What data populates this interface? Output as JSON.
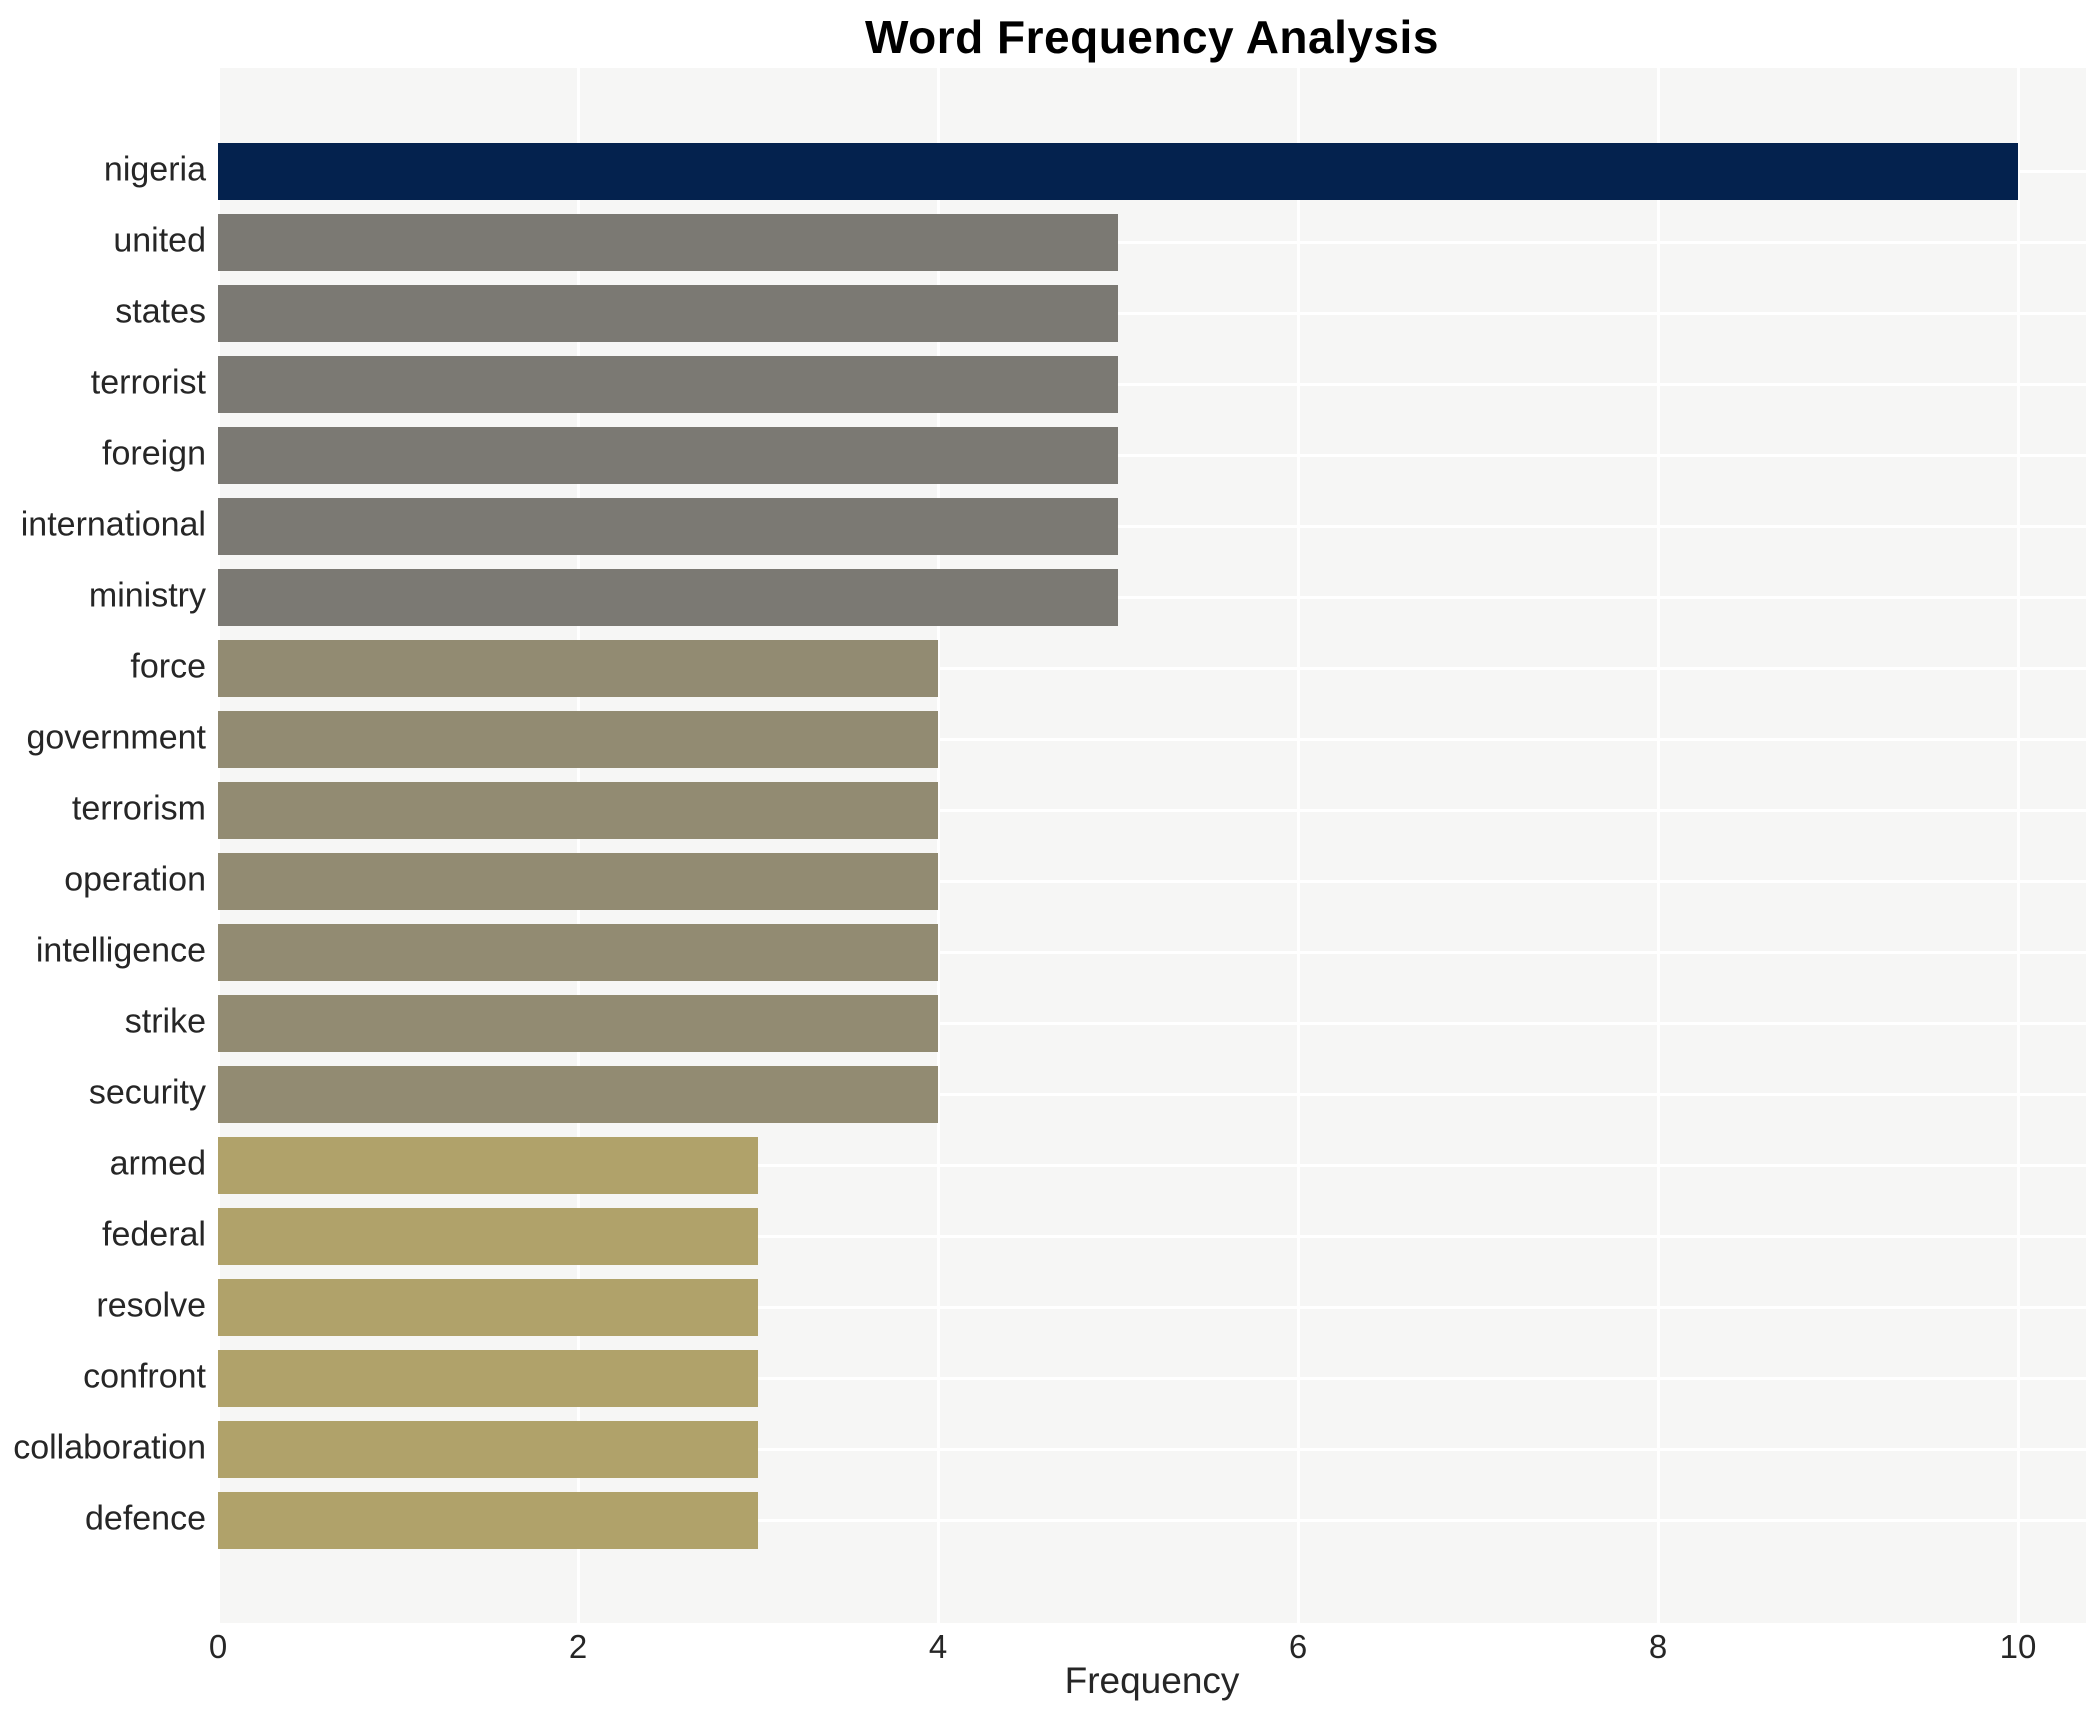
{
  "title": "Word Frequency Analysis",
  "chart_data": {
    "type": "bar",
    "orientation": "horizontal",
    "title": "Word Frequency Analysis",
    "xlabel": "Frequency",
    "ylabel": "",
    "categories": [
      "nigeria",
      "united",
      "states",
      "terrorist",
      "foreign",
      "international",
      "ministry",
      "force",
      "government",
      "terrorism",
      "operation",
      "intelligence",
      "strike",
      "security",
      "armed",
      "federal",
      "resolve",
      "confront",
      "collaboration",
      "defence"
    ],
    "values": [
      10,
      5,
      5,
      5,
      5,
      5,
      5,
      4,
      4,
      4,
      4,
      4,
      4,
      4,
      3,
      3,
      3,
      3,
      3,
      3
    ],
    "bar_colors": [
      "#04224e",
      "#7b7973",
      "#7b7973",
      "#7b7973",
      "#7b7973",
      "#7b7973",
      "#7b7973",
      "#928b72",
      "#928b72",
      "#928b72",
      "#928b72",
      "#928b72",
      "#928b72",
      "#928b72",
      "#b0a26a",
      "#b0a26a",
      "#b0a26a",
      "#b0a26a",
      "#b0a26a",
      "#b0a26a"
    ],
    "xticks": [
      0,
      2,
      4,
      6,
      8,
      10
    ],
    "xlim": [
      0,
      10.38
    ],
    "grid": true,
    "legend": false,
    "panel_background": "#f6f6f5",
    "grid_color": "#ffffff",
    "text_color": "#262626",
    "title_color": "#000000"
  }
}
